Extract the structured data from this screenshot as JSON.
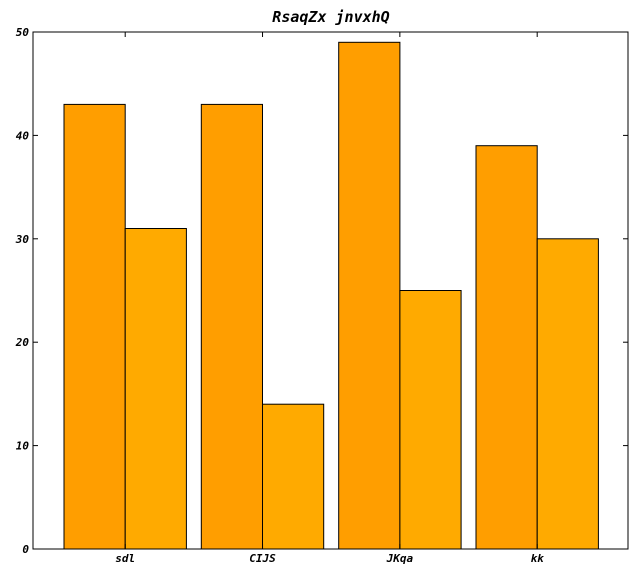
{
  "chart_data": {
    "type": "bar",
    "title": "RsaqZx jnvxhQ",
    "xlabel": "",
    "ylabel": "",
    "categories": [
      "sdl",
      "CIJS",
      "JKqa",
      "kk"
    ],
    "series": [
      {
        "values": [
          43,
          43,
          49,
          39
        ],
        "color": "#ff9e00"
      },
      {
        "values": [
          31,
          14,
          25,
          30
        ],
        "color": "#ffaa00"
      }
    ],
    "ylim": [
      0,
      50
    ],
    "yticks": [
      "0",
      "10",
      "20",
      "30",
      "40",
      "50"
    ],
    "grid": false,
    "legend": "none"
  }
}
